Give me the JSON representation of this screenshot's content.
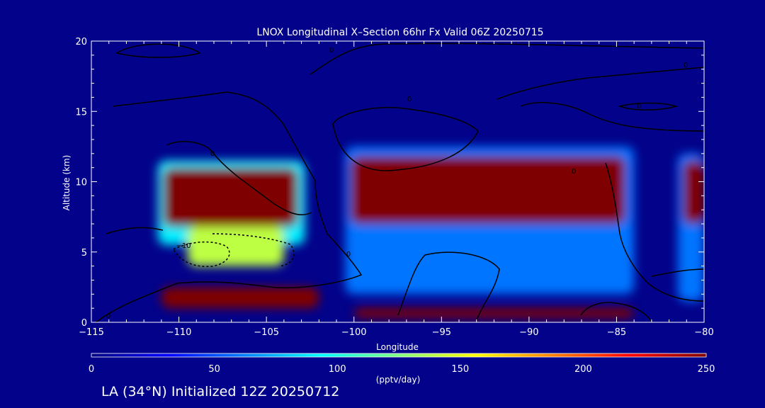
{
  "chart_data": {
    "type": "heatmap",
    "title": "LNOX Longitudinal X–Section 66hr  Fx Valid 06Z 20250715",
    "xlabel": "Longitude",
    "ylabel": "Altitude (km)",
    "xlim": [
      -115,
      -80
    ],
    "ylim": [
      0,
      20
    ],
    "x_ticks": [
      -115,
      -110,
      -105,
      -100,
      -95,
      -90,
      -85,
      -80
    ],
    "x_tick_labels": [
      "−115",
      "−110",
      "−105",
      "−100",
      "−95",
      "−90",
      "−85",
      "−80"
    ],
    "y_ticks": [
      0,
      5,
      10,
      15,
      20
    ],
    "y_tick_labels": [
      "0",
      "5",
      "10",
      "15",
      "20"
    ],
    "colorbar": {
      "min": 0,
      "max": 250,
      "ticks": [
        0,
        50,
        100,
        150,
        200,
        250
      ],
      "tick_labels": [
        "0",
        "50",
        "100",
        "150",
        "200",
        "250"
      ],
      "label": "(pptv/day)"
    },
    "background_value": 0,
    "regions": [
      {
        "lon": [
          -111.2,
          -102.8
        ],
        "alt": [
          5.5,
          11.5
        ],
        "value": 90
      },
      {
        "lon": [
          -110.9,
          -103.2
        ],
        "alt": [
          6.8,
          11.0
        ],
        "value": 250
      },
      {
        "lon": [
          -109.5,
          -104.0
        ],
        "alt": [
          4.0,
          6.8
        ],
        "value": 140
      },
      {
        "lon": [
          -100.5,
          -84.0
        ],
        "alt": [
          2.0,
          12.5
        ],
        "value": 60
      },
      {
        "lon": [
          -100.2,
          -84.5
        ],
        "alt": [
          7.0,
          11.8
        ],
        "value": 250
      },
      {
        "lon": [
          -81.5,
          -80.0
        ],
        "alt": [
          1.5,
          12.0
        ],
        "value": 60
      },
      {
        "lon": [
          -81.2,
          -80.0
        ],
        "alt": [
          7.0,
          11.5
        ],
        "value": 250
      },
      {
        "lon": [
          -111.0,
          -102.0
        ],
        "alt": [
          1.0,
          2.5
        ],
        "value": 250
      },
      {
        "lon": [
          -100.0,
          -84.0
        ],
        "alt": [
          0.3,
          1.0
        ],
        "value": 250
      }
    ],
    "contour_labels": [
      "0",
      "0",
      "0",
      "0",
      "0",
      "0",
      "0",
      "0",
      "−10"
    ]
  },
  "footer": {
    "text": "LA (34°N) Initialized 12Z 20250712"
  },
  "colors": {
    "background": "#02028a",
    "foreground": "#ffffff",
    "contour": "#000000"
  }
}
